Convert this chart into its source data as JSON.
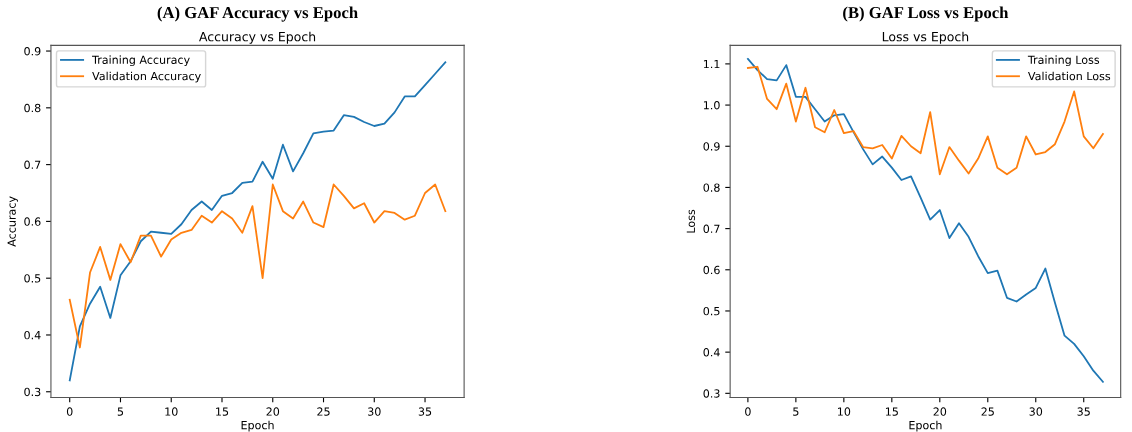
{
  "chart_data": [
    {
      "type": "line",
      "title": "(A) GAF Accuracy vs Epoch",
      "subtitle": "Accuracy vs Epoch",
      "xlabel": "Epoch",
      "ylabel": "Accuracy",
      "x": [
        0,
        1,
        2,
        3,
        4,
        5,
        6,
        7,
        8,
        9,
        10,
        11,
        12,
        13,
        14,
        15,
        16,
        17,
        18,
        19,
        20,
        21,
        22,
        23,
        24,
        25,
        26,
        27,
        28,
        29,
        30,
        31,
        32,
        33,
        34,
        35,
        36,
        37
      ],
      "series": [
        {
          "name": "Training Accuracy",
          "color": "#1f77b4",
          "values": [
            0.32,
            0.415,
            0.455,
            0.485,
            0.43,
            0.505,
            0.53,
            0.565,
            0.582,
            0.58,
            0.578,
            0.595,
            0.62,
            0.635,
            0.62,
            0.645,
            0.65,
            0.668,
            0.67,
            0.705,
            0.675,
            0.735,
            0.688,
            0.72,
            0.755,
            0.758,
            0.76,
            0.787,
            0.784,
            0.775,
            0.768,
            0.772,
            0.792,
            0.82,
            0.82,
            0.84,
            0.86,
            0.88
          ]
        },
        {
          "name": "Validation Accuracy",
          "color": "#ff7f0e",
          "values": [
            0.462,
            0.378,
            0.51,
            0.555,
            0.497,
            0.56,
            0.528,
            0.575,
            0.575,
            0.538,
            0.568,
            0.58,
            0.585,
            0.61,
            0.598,
            0.618,
            0.605,
            0.58,
            0.627,
            0.5,
            0.665,
            0.618,
            0.605,
            0.635,
            0.598,
            0.59,
            0.665,
            0.645,
            0.623,
            0.632,
            0.598,
            0.618,
            0.615,
            0.603,
            0.61,
            0.65,
            0.665,
            0.618
          ]
        }
      ],
      "xlim": [
        -1.85,
        38.85
      ],
      "xticks": [
        0,
        5,
        10,
        15,
        20,
        25,
        30,
        35
      ],
      "ylim": [
        0.29,
        0.91
      ],
      "yticks": [
        0.3,
        0.4,
        0.5,
        0.6,
        0.7,
        0.8,
        0.9
      ],
      "legend": "top left",
      "grid": false
    },
    {
      "type": "line",
      "title": "(B) GAF Loss vs Epoch",
      "subtitle": "Loss vs Epoch",
      "xlabel": "Epoch",
      "ylabel": "Loss",
      "x": [
        0,
        1,
        2,
        3,
        4,
        5,
        6,
        7,
        8,
        9,
        10,
        11,
        12,
        13,
        14,
        15,
        16,
        17,
        18,
        19,
        20,
        21,
        22,
        23,
        24,
        25,
        26,
        27,
        28,
        29,
        30,
        31,
        32,
        33,
        34,
        35,
        36,
        37
      ],
      "series": [
        {
          "name": "Training Loss",
          "color": "#1f77b4",
          "values": [
            1.112,
            1.085,
            1.063,
            1.06,
            1.097,
            1.02,
            1.02,
            0.99,
            0.96,
            0.975,
            0.978,
            0.935,
            0.893,
            0.856,
            0.875,
            0.848,
            0.818,
            0.827,
            0.775,
            0.722,
            0.745,
            0.677,
            0.713,
            0.68,
            0.633,
            0.592,
            0.598,
            0.532,
            0.523,
            0.54,
            0.556,
            0.603,
            0.52,
            0.44,
            0.42,
            0.39,
            0.355,
            0.328
          ]
        },
        {
          "name": "Validation Loss",
          "color": "#ff7f0e",
          "values": [
            1.09,
            1.093,
            1.015,
            0.99,
            1.052,
            0.96,
            1.042,
            0.946,
            0.934,
            0.988,
            0.932,
            0.937,
            0.898,
            0.895,
            0.903,
            0.87,
            0.925,
            0.9,
            0.883,
            0.983,
            0.832,
            0.898,
            0.865,
            0.834,
            0.87,
            0.924,
            0.848,
            0.832,
            0.848,
            0.924,
            0.88,
            0.886,
            0.905,
            0.96,
            1.033,
            0.924,
            0.895,
            0.93
          ]
        }
      ],
      "xlim": [
        -1.85,
        38.85
      ],
      "xticks": [
        0,
        5,
        10,
        15,
        20,
        25,
        30,
        35
      ],
      "ylim": [
        0.29,
        1.145
      ],
      "yticks": [
        0.3,
        0.4,
        0.5,
        0.6,
        0.7,
        0.8,
        0.9,
        {
          "value": 1.0,
          "label": "1.0"
        },
        1.1
      ],
      "legend": "top right",
      "grid": false
    }
  ]
}
